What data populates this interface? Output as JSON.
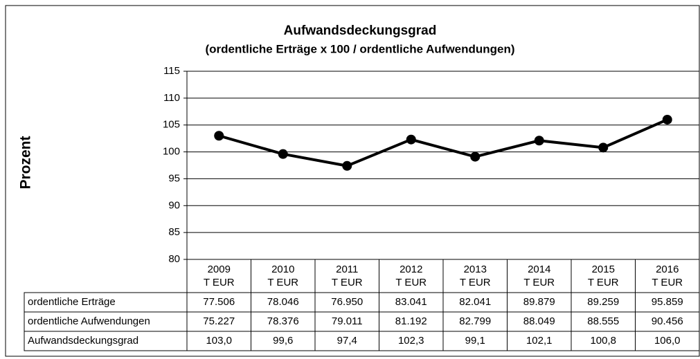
{
  "chart_data": {
    "type": "line",
    "title": "Aufwandsdeckungsgrad",
    "subtitle": "(ordentliche Erträge x 100 / ordentliche Aufwendungen)",
    "y_label": "Prozent",
    "categories": [
      "2009",
      "2010",
      "2011",
      "2012",
      "2013",
      "2014",
      "2015",
      "2016"
    ],
    "category_unit": "T EUR",
    "series": [
      {
        "name": "Aufwandsdeckungsgrad",
        "color": "#000000",
        "values": [
          103.0,
          99.6,
          97.4,
          102.3,
          99.1,
          102.1,
          100.8,
          106.0
        ],
        "value_labels": [
          "103,0",
          "99,6",
          "97,4",
          "102,3",
          "99,1",
          "102,1",
          "100,8",
          "106,0"
        ]
      }
    ],
    "ylim": [
      80,
      115
    ],
    "yticks": [
      80,
      85,
      90,
      95,
      100,
      105,
      110,
      115
    ],
    "grid": true,
    "table_rows": [
      {
        "label": "ordentliche Erträge",
        "cells": [
          "77.506",
          "78.046",
          "76.950",
          "83.041",
          "82.041",
          "89.879",
          "89.259",
          "95.859"
        ]
      },
      {
        "label": "ordentliche Aufwendungen",
        "cells": [
          "75.227",
          "78.376",
          "79.011",
          "81.192",
          "82.799",
          "88.049",
          "88.555",
          "90.456"
        ]
      }
    ]
  }
}
